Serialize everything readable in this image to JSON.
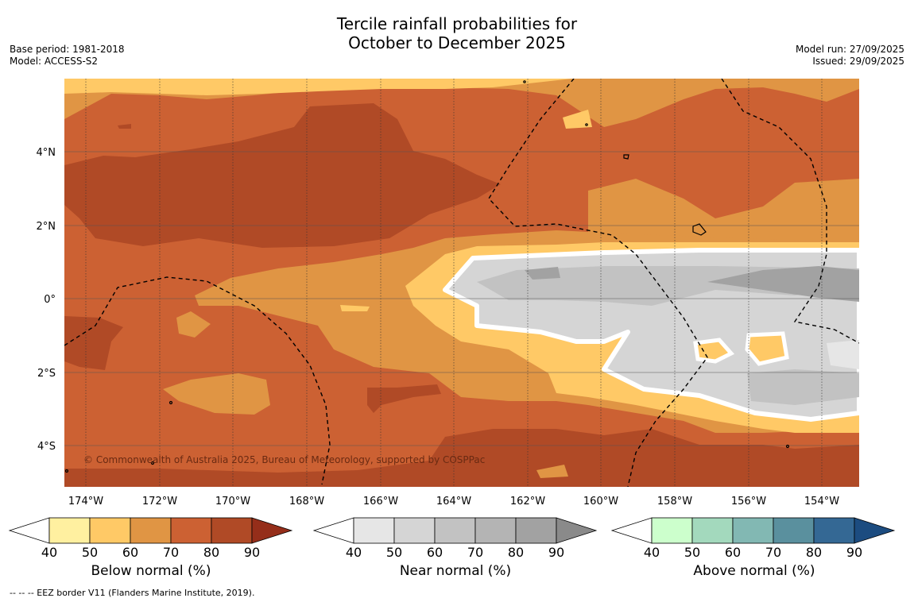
{
  "title_line1": "Tercile rainfall probabilities for",
  "title_line2": "October to December 2025",
  "meta_left": [
    "Base period: 1981-2018",
    "Model: ACCESS-S2"
  ],
  "meta_right": [
    "Model run: 27/09/2025",
    "Issued: 29/09/2025"
  ],
  "map": {
    "lon_labels": [
      "174°W",
      "172°W",
      "170°W",
      "168°W",
      "166°W",
      "164°W",
      "162°W",
      "160°W",
      "158°W",
      "156°W",
      "154°W"
    ],
    "lat_labels": [
      "4°N",
      "2°N",
      "0°",
      "2°S",
      "4°S"
    ],
    "copyright": "© Commonwealth of Australia 2025, Bureau of Meteorology, supported by COSPPac"
  },
  "colorbars": [
    {
      "title": "Below normal (%)",
      "ticks": [
        "40",
        "50",
        "60",
        "70",
        "80",
        "90"
      ],
      "colors": [
        "#ffffff",
        "#fff0a0",
        "#ffc966",
        "#e09544",
        "#cc6133",
        "#b04a26",
        "#952e1a"
      ]
    },
    {
      "title": "Near normal (%)",
      "ticks": [
        "40",
        "50",
        "60",
        "70",
        "80",
        "90"
      ],
      "colors": [
        "#ffffff",
        "#e6e6e6",
        "#d5d5d5",
        "#c2c2c2",
        "#b4b4b4",
        "#a2a2a2",
        "#8a8a8a"
      ]
    },
    {
      "title": "Above normal (%)",
      "ticks": [
        "40",
        "50",
        "60",
        "70",
        "80",
        "90"
      ],
      "colors": [
        "#ffffff",
        "#ccffcc",
        "#a3d9bd",
        "#82b8b3",
        "#5a909e",
        "#346894",
        "#1c4c80"
      ]
    }
  ],
  "footnote": "--  --  -- EEZ border V11 (Flanders Marine Institute, 2019)."
}
